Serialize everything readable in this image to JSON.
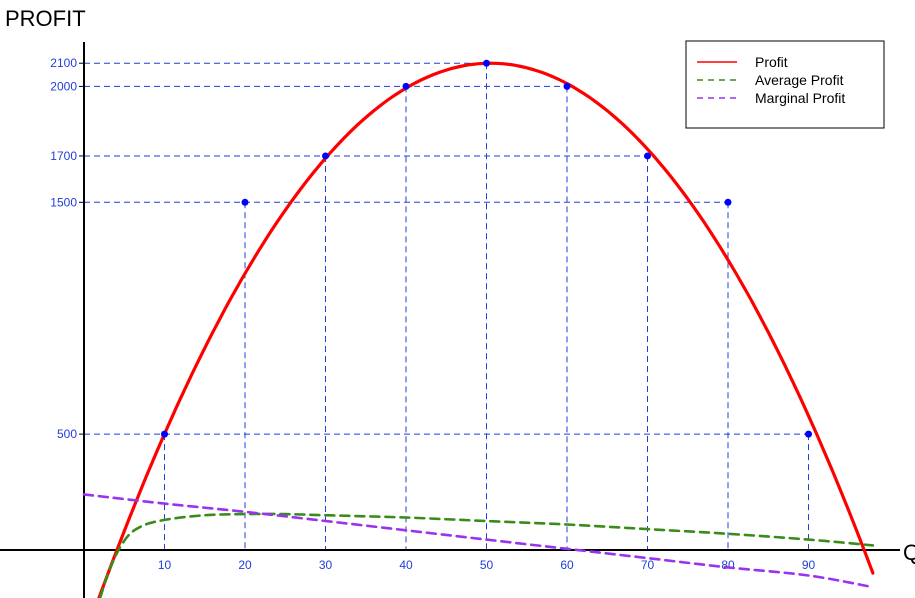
{
  "chart_data": {
    "type": "line",
    "ylabel": "PROFIT",
    "xlabel": "Q",
    "xlim": [
      -1,
      98
    ],
    "ylim": [
      -300,
      2250
    ],
    "x_ticks": [
      10,
      20,
      30,
      40,
      50,
      60,
      70,
      80,
      90
    ],
    "y_ticks": [
      500,
      1500,
      1700,
      2000,
      2100
    ],
    "grid": "dashed reference lines at marked points",
    "legend_position": "top-right",
    "colors": {
      "profit": "#ff0000",
      "average_profit": "#3a8c1a",
      "marginal_profit": "#9933ee",
      "grid": "#1f3fd8",
      "points": "#0000ff"
    },
    "marked_points": [
      {
        "x": 10,
        "y": 500
      },
      {
        "x": 20,
        "y": 1500
      },
      {
        "x": 30,
        "y": 1700
      },
      {
        "x": 40,
        "y": 2000
      },
      {
        "x": 50,
        "y": 2100
      },
      {
        "x": 60,
        "y": 2000
      },
      {
        "x": 70,
        "y": 1700
      },
      {
        "x": 80,
        "y": 1500
      },
      {
        "x": 90,
        "y": 500
      }
    ],
    "series": [
      {
        "name": "Profit",
        "style": "solid",
        "x": [
          1,
          4,
          10,
          15,
          20,
          25,
          30,
          35,
          40,
          45,
          50,
          55,
          60,
          65,
          70,
          75,
          80,
          85,
          90,
          95,
          98
        ],
        "y": [
          -330,
          0,
          500,
          1090,
          1500,
          1830,
          1700,
          1880,
          2000,
          2080,
          2100,
          2080,
          2000,
          1880,
          1700,
          1570,
          1500,
          1000,
          500,
          -250,
          -330
        ]
      },
      {
        "name": "Average Profit",
        "style": "dashed",
        "x": [
          1,
          3,
          5,
          7,
          10,
          15,
          20,
          25,
          30,
          40,
          50,
          60,
          70,
          80,
          90,
          98
        ],
        "y": [
          -330,
          -100,
          40,
          100,
          130,
          150,
          155,
          155,
          150,
          140,
          125,
          110,
          90,
          70,
          45,
          20
        ]
      },
      {
        "name": "Marginal Profit",
        "style": "dashed",
        "x": [
          0,
          10,
          20,
          30,
          40,
          50,
          60,
          70,
          80,
          90,
          98
        ],
        "y": [
          240,
          200,
          165,
          125,
          85,
          45,
          5,
          -35,
          -75,
          -110,
          -160
        ]
      }
    ]
  }
}
